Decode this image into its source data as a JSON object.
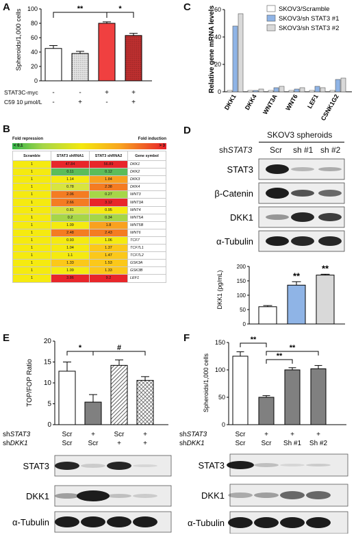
{
  "panels": {
    "A": {
      "label": "A",
      "chart_data": {
        "type": "bar",
        "ylabel": "Spheroids/1,000 cells",
        "ylim": [
          0,
          100
        ],
        "yticks": [
          0,
          20,
          40,
          60,
          80,
          100
        ],
        "values": [
          45,
          38,
          80,
          63
        ],
        "errors": [
          4,
          3,
          2,
          3
        ],
        "colors": [
          "#ffffff",
          "hatch-gray",
          "#f04040",
          "hatch-red"
        ],
        "row_labels": [
          "STAT3C-myc",
          "C59 10 μmol/L"
        ],
        "row_values": [
          [
            "-",
            "-",
            "+",
            "+"
          ],
          [
            "-",
            "+",
            "-",
            "+"
          ]
        ],
        "significance": [
          "**",
          "*"
        ]
      }
    },
    "B": {
      "label": "B",
      "legend_left": "Fold repression",
      "legend_right": "Fold induction",
      "legend_min": "< 0.1",
      "legend_max": "> 3",
      "headers": [
        "Scramble",
        "STAT3 shRNA1",
        "STAT3 shRNA2",
        "Gene symbol"
      ],
      "rows": [
        {
          "s": "1",
          "a": "47.84",
          "b": "56.89",
          "gene": "DKK1"
        },
        {
          "s": "1",
          "a": "0.11",
          "b": "0.12",
          "gene": "DKK2"
        },
        {
          "s": "1",
          "a": "1.14",
          "b": "1.84",
          "gene": "DKK3"
        },
        {
          "s": "1",
          "a": "0.78",
          "b": "2.38",
          "gene": "DKK4"
        },
        {
          "s": "1",
          "a": "2.06",
          "b": "0.27",
          "gene": "WNT3"
        },
        {
          "s": "1",
          "a": "2.66",
          "b": "3.12",
          "gene": "WNT3A"
        },
        {
          "s": "1",
          "a": "0.81",
          "b": "0.95",
          "gene": "WNT4"
        },
        {
          "s": "1",
          "a": "0.2",
          "b": "0.34",
          "gene": "WNT5A"
        },
        {
          "s": "1",
          "a": "1.09",
          "b": "1.8",
          "gene": "WNT5B"
        },
        {
          "s": "1",
          "a": "2.48",
          "b": "2.43",
          "gene": "WNT6"
        },
        {
          "s": "1",
          "a": "0.93",
          "b": "1.06",
          "gene": "TCF7"
        },
        {
          "s": "1",
          "a": "1.04",
          "b": "1.37",
          "gene": "TCF7L1"
        },
        {
          "s": "1",
          "a": "1.1",
          "b": "1.47",
          "gene": "TCF7L2"
        },
        {
          "s": "1",
          "a": "1.33",
          "b": "1.53",
          "gene": "GSK3A"
        },
        {
          "s": "1",
          "a": "1.09",
          "b": "1.33",
          "gene": "GSK3B"
        },
        {
          "s": "1",
          "a": "3.86",
          "b": "9.2",
          "gene": "LEF1"
        }
      ]
    },
    "C": {
      "label": "C",
      "chart_data": {
        "type": "bar",
        "ylabel": "Relative gene mRNA levels",
        "ylim": [
          0,
          60
        ],
        "yticks": [
          0,
          20,
          40,
          60
        ],
        "categories": [
          "DKK1",
          "DKK4",
          "WNT3A",
          "WNT6",
          "LEF1",
          "CSNK1G2"
        ],
        "series": [
          {
            "name": "SKOV3/Scramble",
            "color": "#ffffff",
            "values": [
              1,
              1,
              1,
              1,
              1,
              1
            ]
          },
          {
            "name": "SKOV3/sh STAT3 #1",
            "color": "#8fb4e6",
            "values": [
              48,
              1,
              3,
              2,
              4,
              9
            ]
          },
          {
            "name": "SKOV3/sh STAT3 #2",
            "color": "#d9d9d9",
            "values": [
              57,
              2,
              4,
              3,
              3,
              10
            ]
          }
        ],
        "legend_position": "top-right"
      }
    },
    "D": {
      "label": "D",
      "title": "SKOV3 spheroids",
      "sh_label": "shSTAT3",
      "lanes": [
        "Scr",
        "sh #1",
        "sh #2"
      ],
      "blots": [
        "STAT3",
        "β-Catenin",
        "DKK1",
        "α-Tubulin"
      ],
      "chart_data": {
        "type": "bar",
        "ylabel": "DKK1 (pg/mL)",
        "ylim": [
          0,
          200
        ],
        "yticks": [
          0,
          50,
          100,
          150,
          200
        ],
        "values": [
          60,
          135,
          170
        ],
        "errors": [
          4,
          12,
          3
        ],
        "colors": [
          "#ffffff",
          "#8fb4e6",
          "#d9d9d9"
        ],
        "significance": [
          "**",
          "**"
        ]
      }
    },
    "E": {
      "label": "E",
      "chart_data": {
        "type": "bar",
        "ylabel": "TOP/FOP Ratio",
        "ylim": [
          0,
          20
        ],
        "yticks": [
          0,
          5,
          10,
          15,
          20
        ],
        "values": [
          12.8,
          5.4,
          14.2,
          10.6
        ],
        "errors": [
          2.2,
          1.8,
          1.3,
          0.9
        ],
        "colors": [
          "#ffffff",
          "#808080",
          "hatch-diag",
          "hatch-cross"
        ],
        "significance": [
          "*",
          "#"
        ]
      },
      "row_labels": [
        "shSTAT3",
        "shDKK1"
      ],
      "row_values": [
        [
          "Scr",
          "+",
          "Scr",
          "+"
        ],
        [
          "Scr",
          "Scr",
          "+",
          "+"
        ]
      ],
      "blots": [
        "STAT3",
        "DKK1",
        "α-Tubulin"
      ]
    },
    "F": {
      "label": "F",
      "chart_data": {
        "type": "bar",
        "ylabel": "Spheroids/1,000 cells",
        "ylim": [
          0,
          150
        ],
        "yticks": [
          0,
          50,
          100,
          150
        ],
        "values": [
          125,
          50,
          100,
          102
        ],
        "errors": [
          8,
          3,
          4,
          6
        ],
        "colors": [
          "#ffffff",
          "#808080",
          "#808080",
          "#808080"
        ],
        "significance": [
          "**",
          "**",
          "**"
        ]
      },
      "row_labels": [
        "shSTAT3",
        "shDKK1"
      ],
      "row_values": [
        [
          "Scr",
          "+",
          "+",
          "+"
        ],
        [
          "Scr",
          "Scr",
          "Sh #1",
          "Sh #2"
        ]
      ],
      "blots": [
        "STAT3",
        "DKK1",
        "α-Tubulin"
      ]
    }
  }
}
